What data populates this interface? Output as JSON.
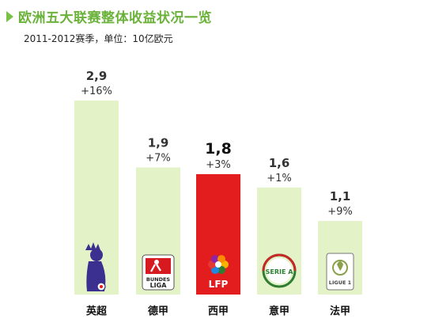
{
  "header": {
    "title": "欧洲五大联赛整体收益状况一览",
    "subtitle": "2011-2012赛季，单位：10亿欧元"
  },
  "colors": {
    "bar": "#e4f2c8",
    "bar_highlight": "#e31d1d",
    "accent": "#7ac143"
  },
  "logos": {
    "premier_league": {
      "icon": "lion-crest-icon"
    },
    "bundesliga": {
      "icon": "bundesliga-logo-icon",
      "text_line1": "BUNDES",
      "text_line2": "LIGA"
    },
    "lfp": {
      "icon": "lfp-logo-icon",
      "text": "LFP"
    },
    "serie_a": {
      "icon": "serie-a-logo-icon",
      "text": "SERIE A"
    },
    "ligue1": {
      "icon": "ligue1-logo-icon",
      "text": "LIGUE 1"
    }
  },
  "chart_data": {
    "type": "bar",
    "title": "欧洲五大联赛整体收益状况一览",
    "subtitle": "2011-2012赛季，单位：10亿欧元",
    "categories": [
      "英超",
      "德甲",
      "西甲",
      "意甲",
      "法甲"
    ],
    "values": [
      2.9,
      1.9,
      1.8,
      1.6,
      1.1
    ],
    "value_labels": [
      "2,9",
      "1,9",
      "1,8",
      "1,6",
      "1,1"
    ],
    "growth_labels": [
      "+16%",
      "+7%",
      "+3%",
      "+1%",
      "+9%"
    ],
    "highlight_index": 2,
    "ylim": [
      0,
      2.9
    ],
    "grid": false,
    "legend": "none"
  }
}
